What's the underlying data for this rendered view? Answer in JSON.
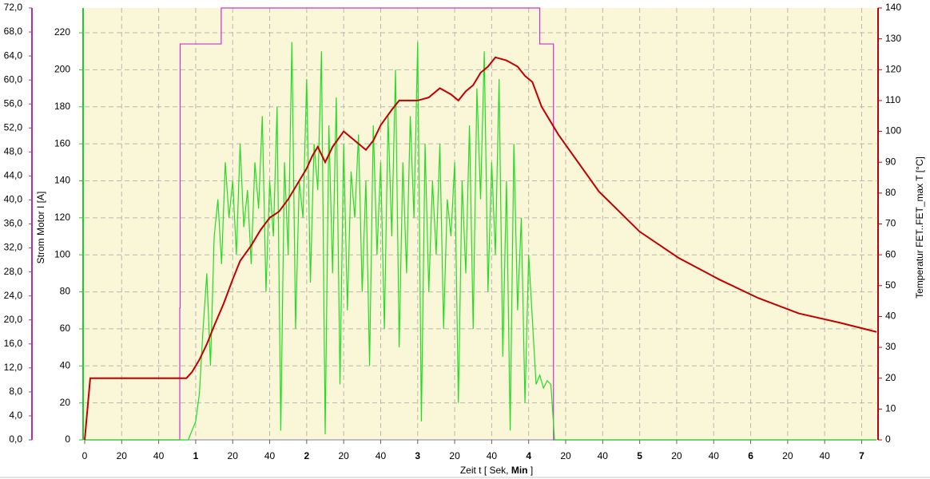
{
  "chart_data": {
    "type": "line",
    "xlim": [
      0,
      428
    ],
    "xticks": [
      0,
      20,
      40,
      {
        "value": 60,
        "label": "1"
      },
      {
        "value": 80,
        "label": "20"
      },
      {
        "value": 100,
        "label": "40"
      },
      {
        "value": 120,
        "label": "2"
      },
      {
        "value": 140,
        "label": "20"
      },
      {
        "value": 160,
        "label": "40"
      },
      {
        "value": 180,
        "label": "3"
      },
      {
        "value": 200,
        "label": "20"
      },
      {
        "value": 220,
        "label": "40"
      },
      {
        "value": 240,
        "label": "4"
      },
      {
        "value": 260,
        "label": "20"
      },
      {
        "value": 280,
        "label": "40"
      },
      {
        "value": 300,
        "label": "5"
      },
      {
        "value": 320,
        "label": "20"
      },
      {
        "value": 340,
        "label": "40"
      },
      {
        "value": 360,
        "label": "6"
      },
      {
        "value": 380,
        "label": "20"
      },
      {
        "value": 400,
        "label": "40"
      },
      {
        "value": 420,
        "label": "7"
      }
    ],
    "xlabel_parts": [
      "Zeit  t  [ Sek, ",
      "Min",
      " ]"
    ],
    "ylim": [
      0,
      72
    ],
    "yticks": [
      {
        "value": 0,
        "label": "0,0"
      },
      {
        "value": 4,
        "label": "4,0"
      },
      {
        "value": 8,
        "label": "8,0"
      },
      {
        "value": 12,
        "label": "12,0"
      },
      {
        "value": 16,
        "label": "16,0"
      },
      {
        "value": 20,
        "label": "20,0"
      },
      {
        "value": 24,
        "label": "24,0"
      },
      {
        "value": 28,
        "label": "28,0"
      },
      {
        "value": 32,
        "label": "32,0"
      },
      {
        "value": 36,
        "label": "36,0"
      },
      {
        "value": 40,
        "label": "40,0"
      },
      {
        "value": 44,
        "label": "44,0"
      },
      {
        "value": 48,
        "label": "48,0"
      },
      {
        "value": 52,
        "label": "52,0"
      },
      {
        "value": 56,
        "label": "56,0"
      },
      {
        "value": 60,
        "label": "60,0"
      },
      {
        "value": 64,
        "label": "64,0"
      },
      {
        "value": 68,
        "label": "68,0"
      },
      {
        "value": 72,
        "label": "72,0"
      }
    ],
    "y3lim": [
      0,
      233.4
    ],
    "y3ticks": [
      0,
      20,
      40,
      60,
      80,
      100,
      120,
      140,
      160,
      180,
      200,
      220
    ],
    "y3label": "Strom Motor  I  [A]",
    "y2lim": [
      0,
      140
    ],
    "y2ticks": [
      0,
      10,
      20,
      30,
      40,
      50,
      60,
      70,
      80,
      90,
      100,
      110,
      120,
      130,
      140
    ],
    "y2label": "Temperatur FET..FET_max  T  [°C]",
    "grid": true,
    "series": [
      {
        "color": "#cc33cc",
        "axis": "y",
        "x": [
          0,
          51.4,
          51.4,
          51.6,
          51.6,
          73.8,
          73.8,
          246,
          246,
          253.4,
          253.4,
          428
        ],
        "values": [
          0,
          0,
          22,
          22,
          66,
          66,
          72,
          72,
          66,
          66,
          0,
          0
        ]
      },
      {
        "color": "#22dd22",
        "axis": "y3",
        "x": [
          0,
          54,
          56,
          58,
          60,
          62,
          64,
          66,
          68,
          70,
          72,
          74,
          76,
          78,
          80,
          82,
          84,
          86,
          88,
          90,
          92,
          94,
          96,
          98,
          100,
          102,
          104,
          106,
          108,
          110,
          112,
          114,
          116,
          118,
          120,
          122,
          124,
          126,
          128,
          130,
          132,
          134,
          136,
          138,
          140,
          142,
          144,
          146,
          148,
          150,
          152,
          154,
          156,
          158,
          160,
          162,
          164,
          166,
          168,
          170,
          172,
          174,
          176,
          178,
          180,
          182,
          184,
          186,
          188,
          190,
          192,
          194,
          196,
          198,
          200,
          202,
          204,
          206,
          208,
          210,
          212,
          214,
          216,
          218,
          220,
          222,
          224,
          226,
          228,
          230,
          232,
          234,
          236,
          238,
          240,
          242,
          244,
          246,
          248,
          250,
          252,
          254,
          428
        ],
        "values": [
          0,
          0,
          0,
          5,
          10,
          25,
          60,
          90,
          40,
          110,
          130,
          95,
          150,
          120,
          140,
          100,
          160,
          115,
          135,
          95,
          150,
          125,
          175,
          80,
          140,
          110,
          180,
          5,
          150,
          100,
          215,
          60,
          140,
          120,
          195,
          85,
          160,
          135,
          210,
          3,
          170,
          90,
          185,
          30,
          160,
          70,
          145,
          120,
          165,
          80,
          140,
          40,
          170,
          100,
          150,
          60,
          175,
          110,
          200,
          50,
          150,
          90,
          175,
          120,
          215,
          10,
          160,
          80,
          140,
          100,
          160,
          60,
          130,
          110,
          150,
          20,
          140,
          90,
          170,
          60,
          190,
          130,
          210,
          80,
          150,
          100,
          195,
          45,
          140,
          5,
          160,
          70,
          120,
          20,
          100,
          65,
          30,
          35,
          28,
          32,
          30,
          0,
          0
        ]
      },
      {
        "color": "#c00000",
        "axis": "y2",
        "x": [
          0,
          3,
          55,
          58,
          62,
          66,
          70,
          75,
          80,
          84,
          90,
          95,
          100,
          105,
          110,
          115,
          120,
          123,
          126,
          130,
          134,
          140,
          146,
          152,
          156,
          160,
          166,
          170,
          172,
          180,
          186,
          192,
          198,
          202,
          206,
          210,
          214,
          218,
          222,
          228,
          234,
          238,
          242,
          247,
          256,
          278,
          300,
          321,
          343,
          364,
          386,
          408,
          428
        ],
        "values": [
          0,
          20,
          20,
          22,
          26,
          31,
          37,
          44,
          52,
          58,
          63,
          68,
          72,
          74,
          78,
          83,
          88,
          92,
          95,
          90,
          95,
          100,
          97,
          94,
          97,
          102,
          107,
          110,
          110,
          110,
          111,
          114,
          112,
          110,
          113,
          115,
          119,
          121,
          124,
          123,
          121,
          118,
          116,
          108,
          99,
          80.5,
          67.5,
          59,
          52,
          46,
          41,
          38,
          35
        ]
      }
    ]
  }
}
